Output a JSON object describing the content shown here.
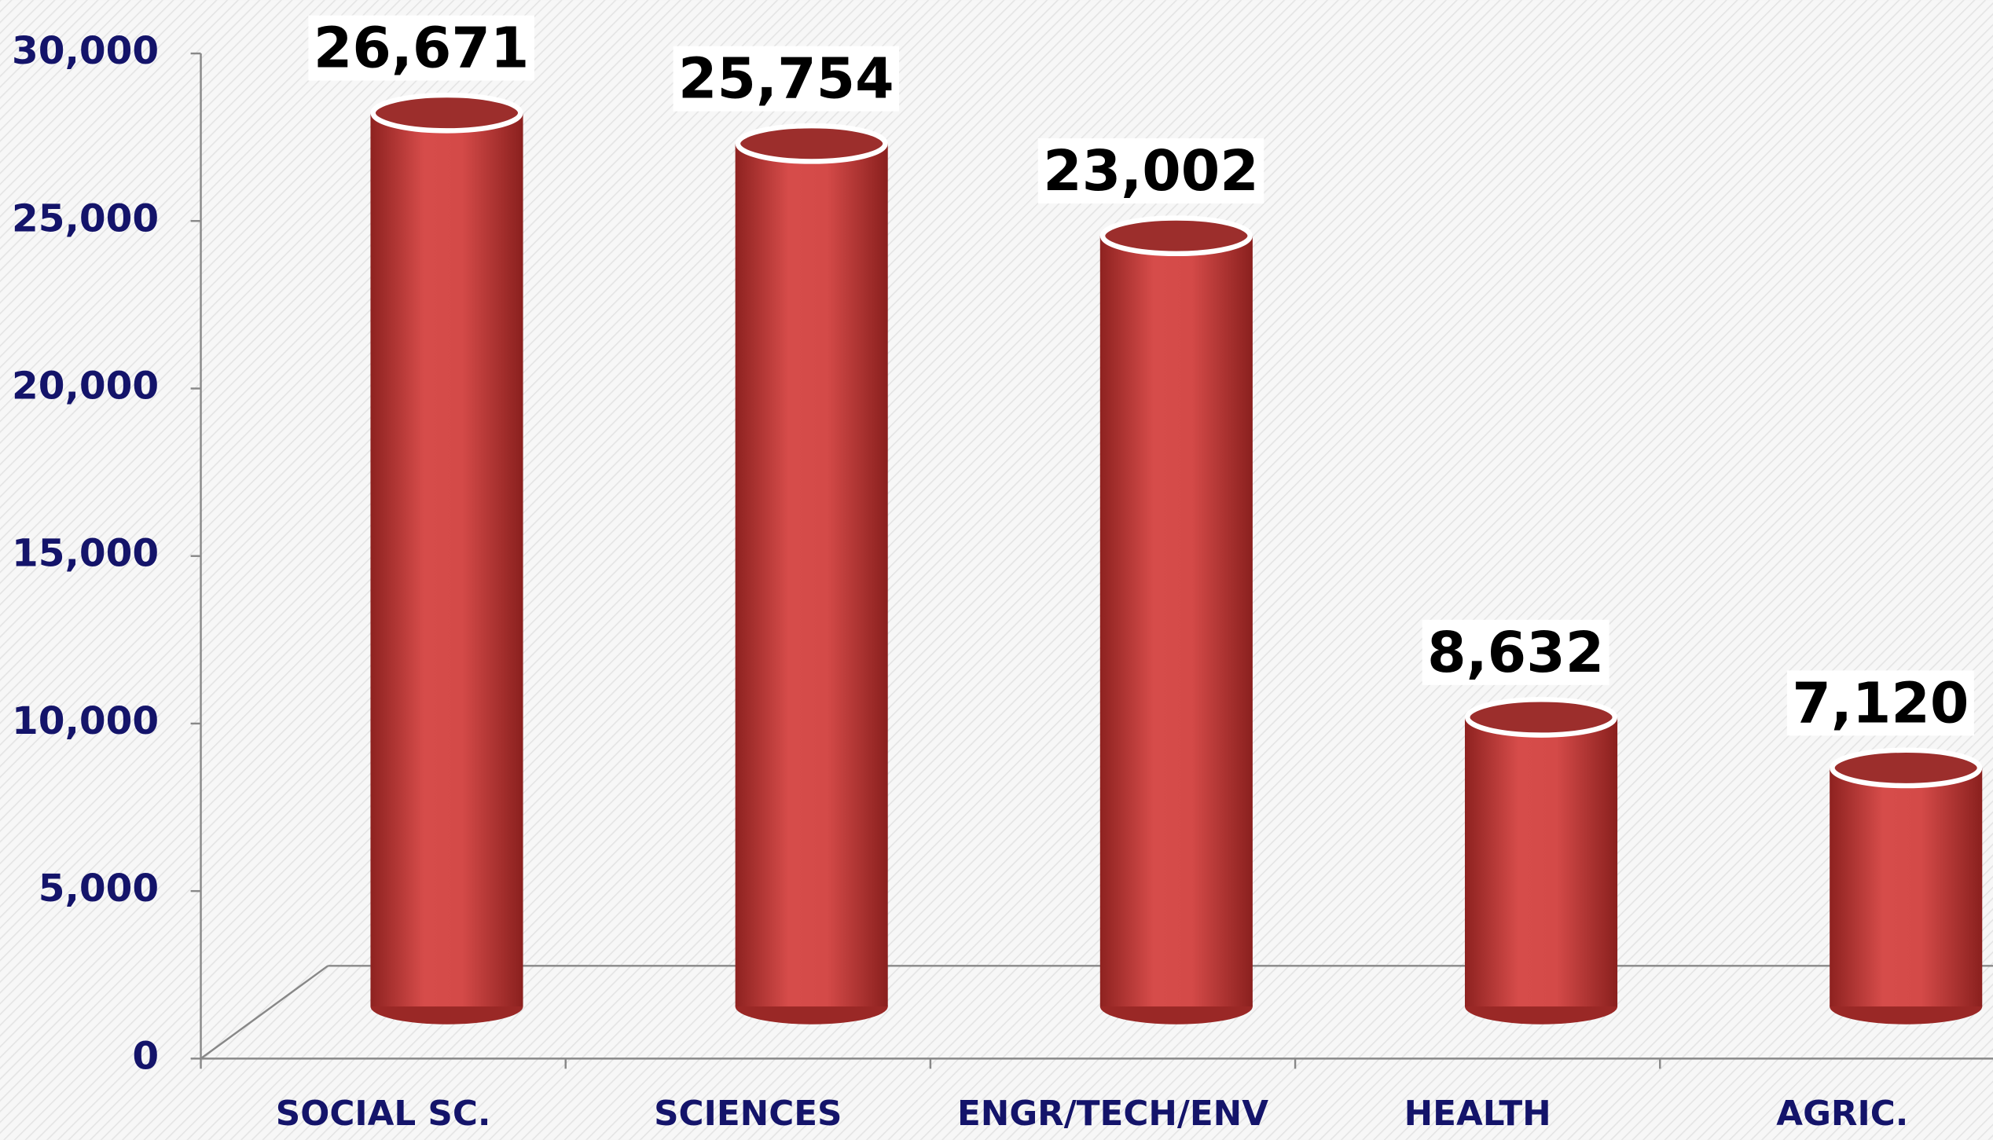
{
  "chart_data": {
    "type": "bar",
    "categories": [
      "SOCIAL SC.",
      "SCIENCES",
      "ENGR/TECH/ENV",
      "HEALTH",
      "AGRIC."
    ],
    "values": [
      26671,
      25754,
      23002,
      8632,
      7120
    ],
    "value_labels": [
      "26,671",
      "25,754",
      "23,002",
      "8,632",
      "7,120"
    ],
    "color": "#d44a48",
    "ylim": [
      0,
      30000
    ],
    "yticks": [
      0,
      {
        "value": 5000,
        "label": "5,000"
      },
      {
        "value": 10000,
        "label": "10,000"
      },
      {
        "value": 15000,
        "label": "15,000"
      },
      {
        "value": 20000,
        "label": "20,000"
      },
      {
        "value": 25000,
        "label": "25,000"
      },
      {
        "value": 30000,
        "label": "30,000"
      }
    ]
  }
}
